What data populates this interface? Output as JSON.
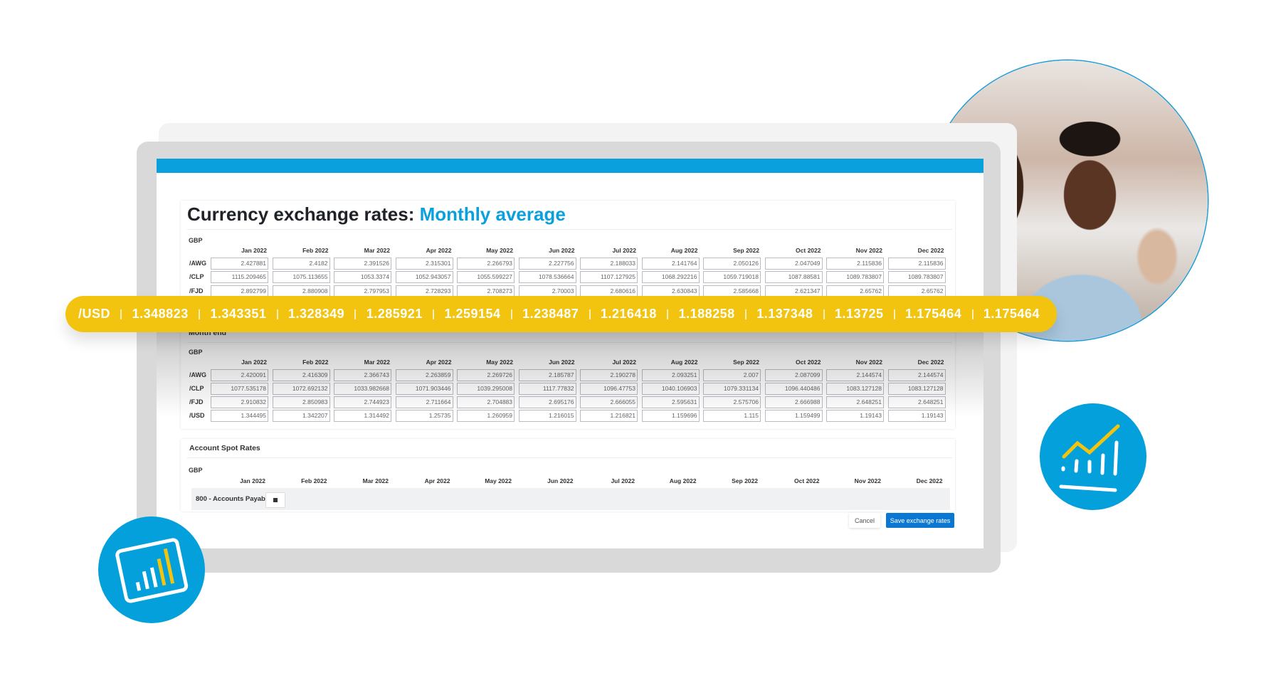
{
  "title": {
    "prefix": "Currency exchange rates:",
    "highlight": "Monthly average"
  },
  "months": [
    "Jan 2022",
    "Feb 2022",
    "Mar 2022",
    "Apr 2022",
    "May 2022",
    "Jun 2022",
    "Jul 2022",
    "Aug 2022",
    "Sep 2022",
    "Oct 2022",
    "Nov 2022",
    "Dec 2022"
  ],
  "monthly_average": {
    "currency": "GBP",
    "rows": [
      {
        "label": "/AWG",
        "values": [
          "2.427881",
          "2.4182",
          "2.391526",
          "2.315301",
          "2.266793",
          "2.227756",
          "2.188033",
          "2.141764",
          "2.050126",
          "2.047049",
          "2.115836",
          "2.115836"
        ]
      },
      {
        "label": "/CLP",
        "values": [
          "1115.209465",
          "1075.113655",
          "1053.3374",
          "1052.943057",
          "1055.599227",
          "1078.536664",
          "1107.127925",
          "1068.292216",
          "1059.719018",
          "1087.88581",
          "1089.783807",
          "1089.783807"
        ]
      },
      {
        "label": "/FJD",
        "values": [
          "2.892799",
          "2.880908",
          "2.797953",
          "2.728293",
          "2.708273",
          "2.70003",
          "2.680616",
          "2.630843",
          "2.585668",
          "2.621347",
          "2.65762",
          "2.65762"
        ]
      }
    ]
  },
  "usd_banner": {
    "label": "/USD",
    "values": [
      "1.348823",
      "1.343351",
      "1.328349",
      "1.285921",
      "1.259154",
      "1.238487",
      "1.216418",
      "1.188258",
      "1.137348",
      "1.13725",
      "1.175464",
      "1.175464"
    ]
  },
  "month_end": {
    "heading": "Month end",
    "currency": "GBP",
    "rows": [
      {
        "label": "/AWG",
        "values": [
          "2.420091",
          "2.416309",
          "2.366743",
          "2.263859",
          "2.269726",
          "2.185787",
          "2.190278",
          "2.093251",
          "2.007",
          "2.087099",
          "2.144574",
          "2.144574"
        ]
      },
      {
        "label": "/CLP",
        "values": [
          "1077.535178",
          "1072.692132",
          "1033.982668",
          "1071.903446",
          "1039.295008",
          "1117.77832",
          "1096.47753",
          "1040.106903",
          "1079.331134",
          "1096.440486",
          "1083.127128",
          "1083.127128"
        ]
      },
      {
        "label": "/FJD",
        "values": [
          "2.910832",
          "2.850983",
          "2.744923",
          "2.711664",
          "2.704883",
          "2.695176",
          "2.666055",
          "2.595631",
          "2.575706",
          "2.666988",
          "2.648251",
          "2.648251"
        ]
      },
      {
        "label": "/USD",
        "values": [
          "1.344495",
          "1.342207",
          "1.314492",
          "1.25735",
          "1.260959",
          "1.216015",
          "1.216821",
          "1.159696",
          "1.115",
          "1.159499",
          "1.19143",
          "1.19143"
        ]
      }
    ]
  },
  "spot_rates": {
    "heading": "Account Spot Rates",
    "currency": "GBP",
    "account": "800 - Accounts Payable"
  },
  "actions": {
    "cancel": "Cancel",
    "save": "Save exchange rates"
  },
  "colors": {
    "brand_blue": "#0aa0dd",
    "banner_yellow": "#f2c40f",
    "save_button": "#0a78d2",
    "icon_accent": "#f2c40f"
  },
  "icons": [
    "bar-chart-icon",
    "trend-chart-icon"
  ]
}
